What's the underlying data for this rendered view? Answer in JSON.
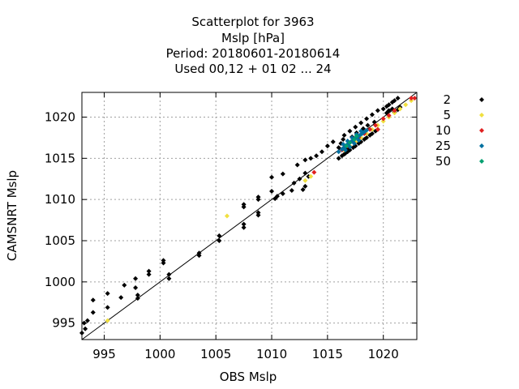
{
  "chart_data": {
    "type": "scatter",
    "title_lines": [
      "Scatterplot for     3963",
      "Mslp [hPa]",
      "Period: 20180601-20180614",
      "Used  00,12  + 01 02 ... 24"
    ],
    "xlabel": "OBS Mslp",
    "ylabel": "CAMSNRT Mslp",
    "xlim": [
      993,
      1023
    ],
    "ylim": [
      993,
      1023
    ],
    "x_ticks": [
      995,
      1000,
      1005,
      1010,
      1015,
      1020
    ],
    "y_ticks": [
      995,
      1000,
      1005,
      1010,
      1015,
      1020
    ],
    "grid": true,
    "reference_line": "y = x",
    "legend_position": "right, outside plot",
    "series": [
      {
        "name": "2",
        "color": "#000000",
        "points": [
          [
            993.0,
            993.8
          ],
          [
            993.2,
            995.0
          ],
          [
            993.5,
            995.3
          ],
          [
            993.3,
            994.3
          ],
          [
            994.0,
            997.8
          ],
          [
            994.0,
            996.3
          ],
          [
            995.3,
            998.6
          ],
          [
            995.3,
            996.9
          ],
          [
            996.8,
            999.6
          ],
          [
            996.5,
            998.1
          ],
          [
            997.8,
            999.3
          ],
          [
            997.8,
            1000.4
          ],
          [
            998.0,
            998.4
          ],
          [
            998.0,
            998.0
          ],
          [
            999.0,
            1000.9
          ],
          [
            999.0,
            1001.3
          ],
          [
            1000.3,
            1002.3
          ],
          [
            1000.3,
            1002.6
          ],
          [
            1000.8,
            1000.4
          ],
          [
            1000.8,
            1000.9
          ],
          [
            1003.5,
            1003.2
          ],
          [
            1003.5,
            1003.5
          ],
          [
            1005.3,
            1005.0
          ],
          [
            1005.3,
            1005.6
          ],
          [
            1007.5,
            1007.0
          ],
          [
            1007.5,
            1006.6
          ],
          [
            1007.5,
            1009.1
          ],
          [
            1007.5,
            1009.4
          ],
          [
            1008.8,
            1008.1
          ],
          [
            1008.8,
            1008.4
          ],
          [
            1008.8,
            1010.0
          ],
          [
            1008.8,
            1010.3
          ],
          [
            1010.0,
            1012.7
          ],
          [
            1010.0,
            1011.0
          ],
          [
            1010.3,
            1010.1
          ],
          [
            1010.5,
            1010.4
          ],
          [
            1011.0,
            1010.7
          ],
          [
            1011.0,
            1013.1
          ],
          [
            1011.8,
            1011.1
          ],
          [
            1012.0,
            1012.0
          ],
          [
            1012.3,
            1014.2
          ],
          [
            1012.5,
            1012.5
          ],
          [
            1012.8,
            1011.2
          ],
          [
            1013.0,
            1011.6
          ],
          [
            1013.0,
            1013.2
          ],
          [
            1013.3,
            1012.8
          ],
          [
            1013.0,
            1014.8
          ],
          [
            1013.5,
            1015.0
          ],
          [
            1014.0,
            1015.3
          ],
          [
            1014.5,
            1015.8
          ],
          [
            1015.0,
            1016.5
          ],
          [
            1015.5,
            1017.0
          ],
          [
            1016.0,
            1015.0
          ],
          [
            1016.3,
            1015.3
          ],
          [
            1016.5,
            1015.5
          ],
          [
            1016.8,
            1015.8
          ],
          [
            1017.0,
            1016.0
          ],
          [
            1017.3,
            1016.3
          ],
          [
            1017.5,
            1016.5
          ],
          [
            1017.8,
            1016.8
          ],
          [
            1018.0,
            1017.0
          ],
          [
            1018.3,
            1017.3
          ],
          [
            1018.5,
            1017.5
          ],
          [
            1018.8,
            1017.8
          ],
          [
            1019.0,
            1018.0
          ],
          [
            1019.3,
            1018.3
          ],
          [
            1019.5,
            1018.5
          ],
          [
            1016.5,
            1017.8
          ],
          [
            1017.0,
            1018.3
          ],
          [
            1017.5,
            1018.8
          ],
          [
            1018.0,
            1019.3
          ],
          [
            1018.5,
            1019.8
          ],
          [
            1019.0,
            1020.3
          ],
          [
            1019.5,
            1020.8
          ],
          [
            1020.0,
            1021.0
          ],
          [
            1020.3,
            1021.3
          ],
          [
            1020.5,
            1021.5
          ],
          [
            1020.8,
            1021.8
          ],
          [
            1021.0,
            1022.0
          ],
          [
            1021.3,
            1022.3
          ],
          [
            1020.3,
            1020.5
          ],
          [
            1020.5,
            1020.8
          ],
          [
            1020.8,
            1021.0
          ],
          [
            1021.0,
            1020.6
          ],
          [
            1021.3,
            1020.9
          ],
          [
            1021.5,
            1021.2
          ],
          [
            1016.0,
            1016.3
          ],
          [
            1016.2,
            1016.8
          ],
          [
            1016.4,
            1017.3
          ],
          [
            1016.6,
            1015.6
          ],
          [
            1016.8,
            1016.2
          ],
          [
            1017.2,
            1017.6
          ],
          [
            1017.6,
            1018.1
          ],
          [
            1018.2,
            1018.6
          ],
          [
            1018.6,
            1019.0
          ],
          [
            1019.2,
            1019.4
          ]
        ]
      },
      {
        "name": "5",
        "color": "#f0e040",
        "points": [
          [
            995.3,
            995.3
          ],
          [
            1006.0,
            1008.0
          ],
          [
            1013.0,
            1012.3
          ],
          [
            1013.5,
            1012.8
          ],
          [
            1016.5,
            1016.0
          ],
          [
            1017.0,
            1016.5
          ],
          [
            1017.5,
            1017.0
          ],
          [
            1018.0,
            1017.5
          ],
          [
            1018.5,
            1018.0
          ],
          [
            1019.0,
            1018.5
          ],
          [
            1019.5,
            1019.0
          ],
          [
            1020.0,
            1019.5
          ],
          [
            1020.5,
            1020.0
          ],
          [
            1021.0,
            1020.5
          ],
          [
            1021.5,
            1021.0
          ],
          [
            1022.0,
            1021.5
          ],
          [
            1022.5,
            1022.0
          ]
        ]
      },
      {
        "name": "10",
        "color": "#e02020",
        "points": [
          [
            1013.8,
            1013.3
          ],
          [
            1016.3,
            1016.0
          ],
          [
            1016.8,
            1016.5
          ],
          [
            1017.3,
            1017.0
          ],
          [
            1017.8,
            1017.5
          ],
          [
            1018.3,
            1018.0
          ],
          [
            1018.8,
            1018.5
          ],
          [
            1019.3,
            1019.0
          ],
          [
            1019.5,
            1018.5
          ],
          [
            1020.0,
            1019.8
          ],
          [
            1020.5,
            1020.2
          ],
          [
            1021.0,
            1020.8
          ],
          [
            1022.5,
            1022.3
          ],
          [
            1022.8,
            1022.3
          ]
        ]
      },
      {
        "name": "25",
        "color": "#0070a0",
        "points": [
          [
            1016.0,
            1015.8
          ],
          [
            1016.3,
            1016.1
          ],
          [
            1016.5,
            1016.3
          ],
          [
            1016.7,
            1016.6
          ],
          [
            1016.9,
            1016.8
          ],
          [
            1017.1,
            1017.0
          ],
          [
            1017.3,
            1017.2
          ],
          [
            1017.5,
            1017.4
          ],
          [
            1017.7,
            1017.6
          ],
          [
            1017.9,
            1017.8
          ],
          [
            1018.1,
            1018.0
          ],
          [
            1018.3,
            1018.2
          ],
          [
            1018.5,
            1018.4
          ],
          [
            1016.4,
            1016.7
          ],
          [
            1016.8,
            1017.1
          ],
          [
            1017.2,
            1017.5
          ],
          [
            1017.6,
            1017.9
          ],
          [
            1018.0,
            1018.3
          ],
          [
            1016.6,
            1016.0
          ],
          [
            1017.0,
            1016.4
          ],
          [
            1017.4,
            1016.8
          ],
          [
            1017.8,
            1017.2
          ]
        ]
      },
      {
        "name": "50",
        "color": "#00a070",
        "points": [
          [
            1016.7,
            1016.5
          ],
          [
            1017.0,
            1016.9
          ],
          [
            1017.4,
            1017.3
          ],
          [
            1017.6,
            1017.7
          ]
        ]
      }
    ]
  }
}
